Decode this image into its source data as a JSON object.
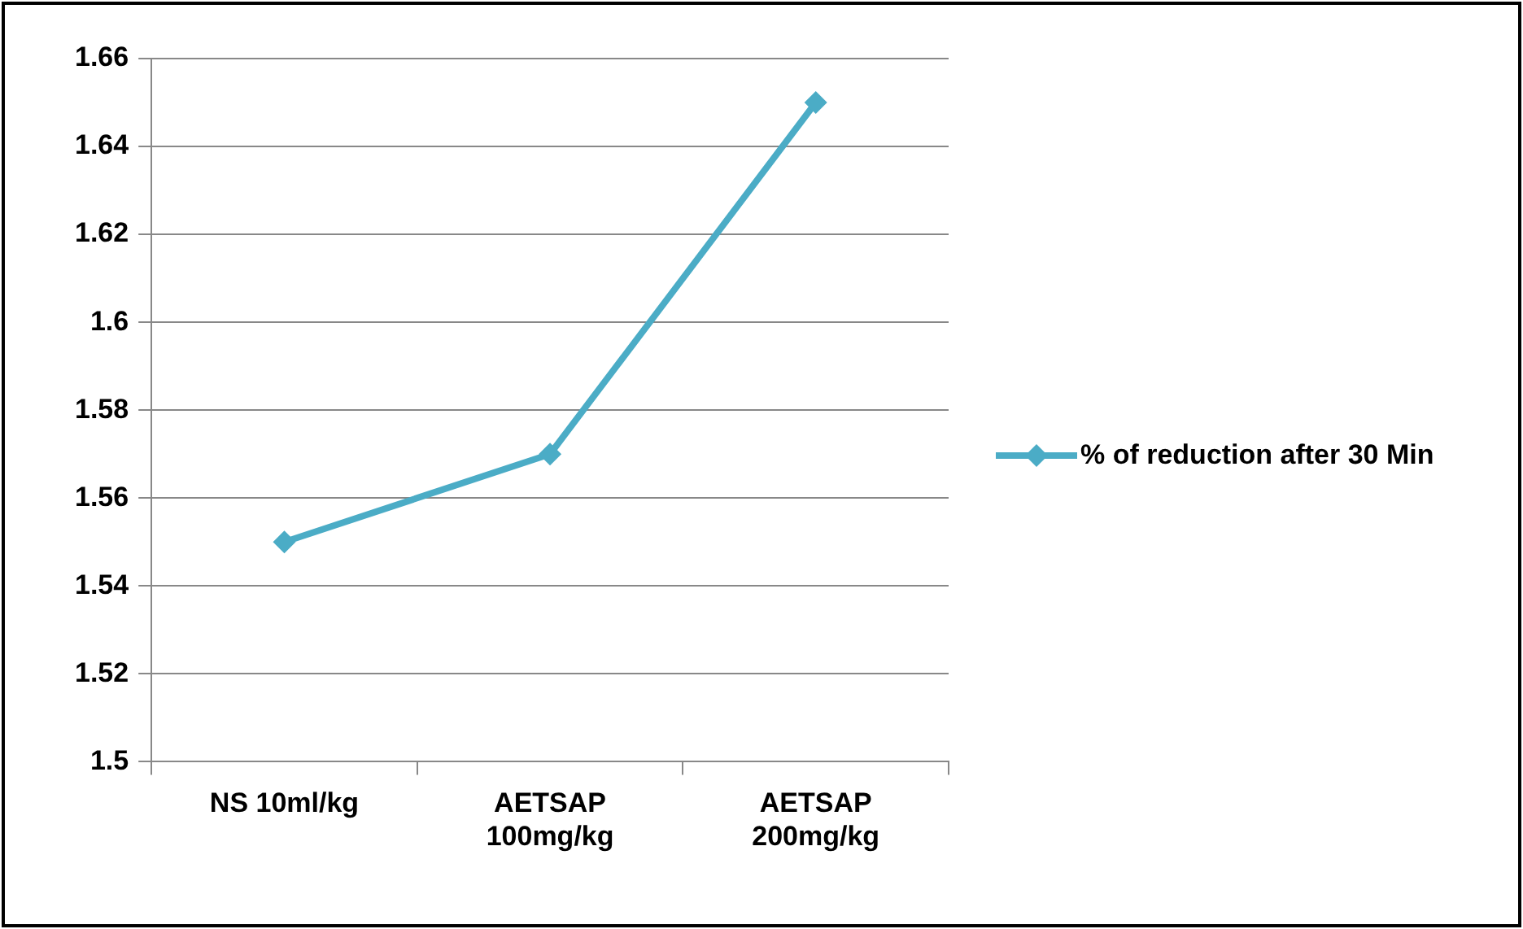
{
  "chart_data": {
    "type": "line",
    "categories": [
      "NS 10ml/kg",
      "AETSAP\n100mg/kg",
      "AETSAP\n200mg/kg"
    ],
    "series": [
      {
        "name": "% of reduction after 30 Min",
        "color": "#4bacc6",
        "values": [
          1.55,
          1.57,
          1.65
        ]
      }
    ],
    "ylim": [
      1.5,
      1.66
    ],
    "yticks": [
      {
        "value": 1.5,
        "label": "1.5"
      },
      {
        "value": 1.52,
        "label": "1.52"
      },
      {
        "value": 1.54,
        "label": "1.54"
      },
      {
        "value": 1.56,
        "label": "1.56"
      },
      {
        "value": 1.58,
        "label": "1.58"
      },
      {
        "value": 1.6,
        "label": "1.6"
      },
      {
        "value": 1.62,
        "label": "1.62"
      },
      {
        "value": 1.64,
        "label": "1.64"
      },
      {
        "value": 1.66,
        "label": "1.66"
      }
    ],
    "grid": "y",
    "legend": "right",
    "marker": "diamond",
    "line_style": "solid"
  }
}
